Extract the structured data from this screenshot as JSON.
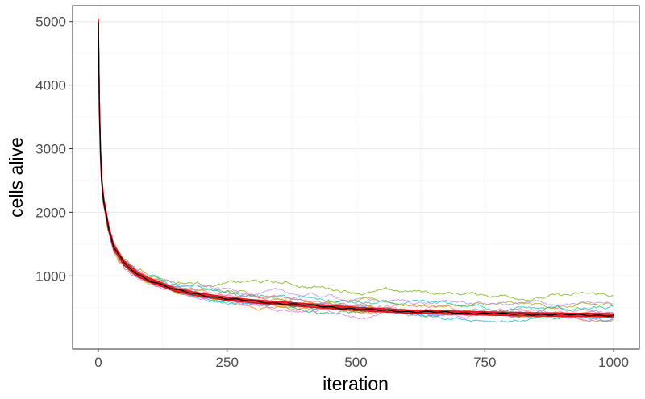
{
  "chart_data": {
    "type": "line",
    "xlabel": "iteration",
    "ylabel": "cells alive",
    "xlim": [
      -50,
      1050
    ],
    "ylim": [
      -150,
      5250
    ],
    "x_ticks": [
      0,
      250,
      500,
      750,
      1000
    ],
    "x_tick_labels": [
      "0",
      "250",
      "500",
      "750",
      "1000"
    ],
    "y_ticks": [
      1000,
      2000,
      3000,
      4000,
      5000
    ],
    "y_tick_labels": [
      "1000",
      "2000",
      "3000",
      "4000",
      "5000"
    ],
    "grid": true,
    "legend": "none",
    "x": [
      0,
      2,
      5,
      10,
      20,
      30,
      50,
      75,
      100,
      150,
      200,
      250,
      300,
      400,
      500,
      600,
      700,
      800,
      900,
      1000
    ],
    "mean": [
      5000,
      3700,
      2650,
      2200,
      1750,
      1450,
      1200,
      1030,
      930,
      780,
      700,
      640,
      600,
      540,
      480,
      440,
      420,
      400,
      390,
      380
    ],
    "band": {
      "lower": [
        4950,
        3620,
        2590,
        2150,
        1710,
        1410,
        1165,
        995,
        900,
        755,
        675,
        615,
        575,
        515,
        455,
        415,
        395,
        375,
        365,
        355
      ],
      "upper": [
        5050,
        3780,
        2710,
        2250,
        1790,
        1490,
        1235,
        1065,
        960,
        805,
        725,
        665,
        625,
        565,
        505,
        465,
        445,
        425,
        415,
        405
      ]
    },
    "runs_offset_end": [
      40,
      -50,
      10,
      120,
      300,
      -30,
      80,
      -60,
      20,
      150,
      -40,
      60
    ],
    "series_colors": [
      "#f8766d",
      "#e58700",
      "#c99800",
      "#a3a500",
      "#6bb100",
      "#00ba38",
      "#00c0af",
      "#00b0f6",
      "#619cff",
      "#b983ff",
      "#e76bf3",
      "#ff67a4"
    ],
    "mean_color": "#000000",
    "band_color": "#e8111b"
  }
}
